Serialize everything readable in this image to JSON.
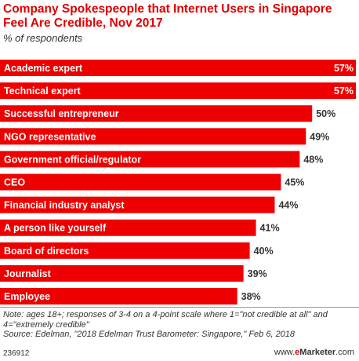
{
  "header": {
    "title": "Company Spokespeople that Internet Users in Singapore Feel Are Credible, Nov 2017",
    "subtitle": "% of respondents"
  },
  "chart_data": {
    "type": "bar",
    "orientation": "horizontal",
    "categories": [
      "Academic expert",
      "Technical expert",
      "Successful entrepreneur",
      "NGO representative",
      "Government official/regulator",
      "CEO",
      "Financial industry analyst",
      "A person like yourself",
      "Board of directors",
      "Journalist",
      "Employee"
    ],
    "values": [
      57,
      57,
      50,
      49,
      48,
      45,
      44,
      41,
      40,
      39,
      38
    ],
    "value_labels": [
      "57%",
      "57%",
      "50%",
      "49%",
      "48%",
      "45%",
      "44%",
      "41%",
      "40%",
      "39%",
      "38%"
    ],
    "unit": "%",
    "xlim": [
      0,
      57
    ],
    "bar_color": "#ee0000",
    "grid": false,
    "legend": "none"
  },
  "footer": {
    "note": "Note: ages 18+; responses of 3-4 on a 4-point scale where 1=\"not credible at all\" and 4=\"extremely credible\"",
    "source": "Source: Edelman, \"2018 Edelman Trust Barometer: Singapore,\" Feb 6, 2018",
    "id": "236912",
    "brand_prefix": "www.",
    "brand_e": "e",
    "brand_main": "Marketer",
    "brand_suffix": ".com"
  },
  "colors": {
    "accent": "#e00000",
    "bar": "#ee0000",
    "text": "#333333"
  }
}
